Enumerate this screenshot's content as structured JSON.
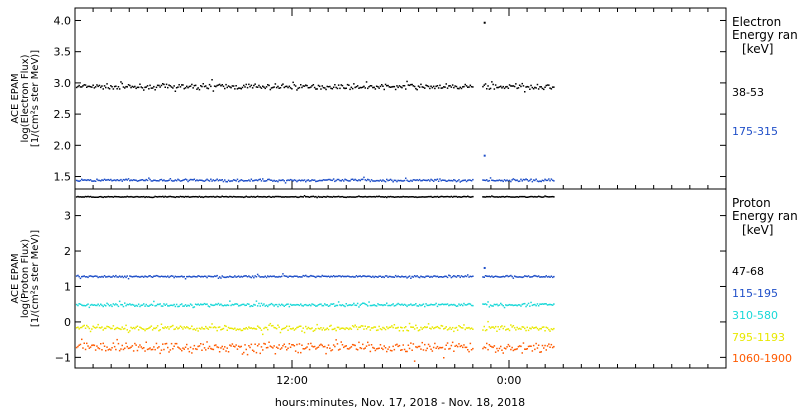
{
  "chart_data": {
    "type": "scatter",
    "xlabel": "hours:minutes, Nov. 17, 2018 - Nov. 18, 2018",
    "x_ticks": [
      "12:00",
      "0:00"
    ],
    "x_range_hours": [
      0,
      36
    ],
    "panels": [
      {
        "name": "electron",
        "ylabel_lines": [
          "ACE EPAM",
          "log(Electron Flux)",
          "[1/(cm²s ster MeV)]"
        ],
        "ylim": [
          1.3,
          4.2
        ],
        "yticks": [
          1.5,
          2.0,
          2.5,
          3.0,
          3.5,
          4.0
        ],
        "ytick_labels": [
          "1.5",
          "2.0",
          "2.5",
          "3.0",
          "3.5",
          "4.0"
        ],
        "legend_title_lines": [
          "Electron",
          "Energy ran",
          "[keV]"
        ],
        "data_gap_hours": [
          22,
          22.5
        ],
        "data_end_hours": 26.5,
        "series": [
          {
            "name": "38-53",
            "color": "#000000",
            "level": 2.95,
            "noise": 0.06,
            "spikes": [
              {
                "x": 22.6,
                "y": 3.98
              }
            ]
          },
          {
            "name": "175-315",
            "color": "#1f4fc8",
            "level": 1.45,
            "noise": 0.03,
            "spikes": [
              {
                "x": 22.6,
                "y": 1.85
              }
            ]
          }
        ]
      },
      {
        "name": "proton",
        "ylabel_lines": [
          "ACE EPAM",
          "log(Proton Flux)",
          "[1/(cm²s ster MeV)]"
        ],
        "ylim": [
          -1.3,
          3.75
        ],
        "yticks": [
          -1,
          0,
          1,
          2,
          3
        ],
        "ytick_labels": [
          "−1",
          "0",
          "1",
          "2",
          "3"
        ],
        "legend_title_lines": [
          "Proton",
          "Energy ran",
          "[keV]"
        ],
        "data_gap_hours": [
          22,
          22.5
        ],
        "data_end_hours": 26.5,
        "series": [
          {
            "name": "47-68",
            "color": "#000000",
            "level": 3.55,
            "noise": 0.02,
            "spikes": []
          },
          {
            "name": "115-195",
            "color": "#1f4fc8",
            "level": 1.3,
            "noise": 0.04,
            "spikes": [
              {
                "x": 22.6,
                "y": 1.55
              }
            ]
          },
          {
            "name": "310-580",
            "color": "#19d8d8",
            "level": 0.5,
            "noise": 0.07,
            "spikes": []
          },
          {
            "name": "795-1193",
            "color": "#e8e800",
            "level": -0.15,
            "noise": 0.12,
            "spikes": []
          },
          {
            "name": "1060-1900",
            "color": "#ff5a00",
            "level": -0.7,
            "noise": 0.2,
            "spikes": []
          }
        ]
      }
    ]
  }
}
